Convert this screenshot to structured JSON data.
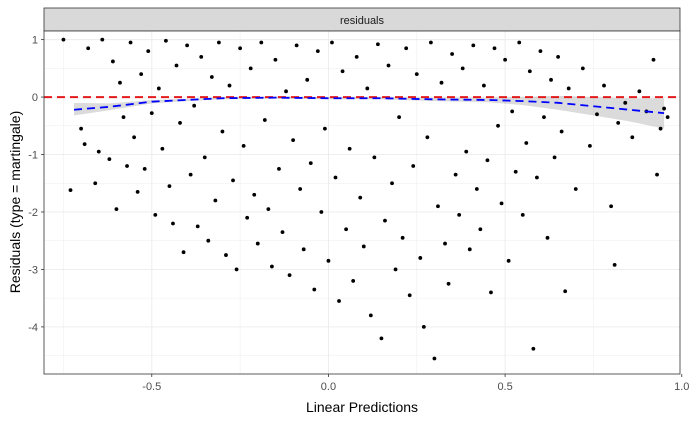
{
  "chart_data": {
    "type": "scatter",
    "facet_label": "residuals",
    "xlabel": "Linear Predictions",
    "ylabel": "Residuals (type = martingale)",
    "xlim": [
      -0.805,
      0.995
    ],
    "ylim": [
      -4.82,
      1.15
    ],
    "x_ticks": [
      {
        "value": -0.5,
        "label": "-0.5"
      },
      {
        "value": 0,
        "label": "0.0"
      },
      {
        "value": 0.5,
        "label": "0.5"
      },
      {
        "value": 1.0,
        "label": "1.0"
      }
    ],
    "y_ticks": [
      {
        "value": 1,
        "label": "1"
      },
      {
        "value": 0,
        "label": "0"
      },
      {
        "value": -1,
        "label": "-1"
      },
      {
        "value": -2,
        "label": "-2"
      },
      {
        "value": -3,
        "label": "-3"
      },
      {
        "value": -4,
        "label": "-4"
      }
    ],
    "reference_line": {
      "y": 0,
      "style": "dashed",
      "color": "#e31a1c"
    },
    "smooth": {
      "color": "#0000ff",
      "style": "dashed",
      "points": [
        {
          "x": -0.72,
          "y": -0.22,
          "lo": -0.32,
          "hi": -0.1
        },
        {
          "x": -0.62,
          "y": -0.17,
          "lo": -0.23,
          "hi": -0.11
        },
        {
          "x": -0.5,
          "y": -0.08,
          "lo": -0.11,
          "hi": -0.05
        },
        {
          "x": -0.4,
          "y": -0.05,
          "lo": -0.07,
          "hi": -0.03
        },
        {
          "x": -0.3,
          "y": -0.02,
          "lo": -0.04,
          "hi": 0.0
        },
        {
          "x": -0.15,
          "y": -0.01,
          "lo": -0.03,
          "hi": 0.01
        },
        {
          "x": 0.0,
          "y": -0.02,
          "lo": -0.04,
          "hi": 0.0
        },
        {
          "x": 0.15,
          "y": -0.02,
          "lo": -0.04,
          "hi": 0.0
        },
        {
          "x": 0.3,
          "y": -0.04,
          "lo": -0.07,
          "hi": -0.01
        },
        {
          "x": 0.45,
          "y": -0.05,
          "lo": -0.09,
          "hi": -0.01
        },
        {
          "x": 0.55,
          "y": -0.07,
          "lo": -0.14,
          "hi": 0.0
        },
        {
          "x": 0.65,
          "y": -0.1,
          "lo": -0.22,
          "hi": 0.02
        },
        {
          "x": 0.75,
          "y": -0.16,
          "lo": -0.32,
          "hi": 0.0
        },
        {
          "x": 0.85,
          "y": -0.22,
          "lo": -0.42,
          "hi": -0.02
        },
        {
          "x": 0.95,
          "y": -0.28,
          "lo": -0.55,
          "hi": -0.02
        }
      ]
    },
    "points": [
      [
        -0.75,
        1.0
      ],
      [
        -0.73,
        -1.62
      ],
      [
        -0.7,
        -0.55
      ],
      [
        -0.69,
        -0.82
      ],
      [
        -0.68,
        0.85
      ],
      [
        -0.66,
        -1.5
      ],
      [
        -0.65,
        -0.95
      ],
      [
        -0.64,
        1.0
      ],
      [
        -0.62,
        -1.08
      ],
      [
        -0.61,
        0.62
      ],
      [
        -0.6,
        -1.95
      ],
      [
        -0.59,
        0.25
      ],
      [
        -0.58,
        -0.35
      ],
      [
        -0.57,
        -1.2
      ],
      [
        -0.56,
        0.95
      ],
      [
        -0.55,
        -0.7
      ],
      [
        -0.54,
        -1.65
      ],
      [
        -0.53,
        0.4
      ],
      [
        -0.52,
        -1.25
      ],
      [
        -0.51,
        0.8
      ],
      [
        -0.5,
        -0.28
      ],
      [
        -0.49,
        -2.05
      ],
      [
        -0.48,
        0.15
      ],
      [
        -0.47,
        -0.9
      ],
      [
        -0.46,
        0.98
      ],
      [
        -0.45,
        -1.55
      ],
      [
        -0.44,
        -2.2
      ],
      [
        -0.43,
        0.55
      ],
      [
        -0.42,
        -0.45
      ],
      [
        -0.41,
        -2.7
      ],
      [
        -0.4,
        0.9
      ],
      [
        -0.39,
        -1.35
      ],
      [
        -0.38,
        -0.15
      ],
      [
        -0.37,
        -2.25
      ],
      [
        -0.36,
        0.7
      ],
      [
        -0.35,
        -1.05
      ],
      [
        -0.34,
        -2.5
      ],
      [
        -0.33,
        0.35
      ],
      [
        -0.32,
        -1.8
      ],
      [
        -0.31,
        0.95
      ],
      [
        -0.3,
        -0.6
      ],
      [
        -0.29,
        -2.75
      ],
      [
        -0.28,
        0.2
      ],
      [
        -0.27,
        -1.45
      ],
      [
        -0.26,
        -3.0
      ],
      [
        -0.25,
        0.85
      ],
      [
        -0.24,
        -0.85
      ],
      [
        -0.23,
        -2.1
      ],
      [
        -0.22,
        0.5
      ],
      [
        -0.21,
        -1.7
      ],
      [
        -0.2,
        -2.55
      ],
      [
        -0.19,
        0.95
      ],
      [
        -0.18,
        -0.4
      ],
      [
        -0.17,
        -1.95
      ],
      [
        -0.16,
        -2.95
      ],
      [
        -0.15,
        0.65
      ],
      [
        -0.14,
        -1.25
      ],
      [
        -0.13,
        -2.35
      ],
      [
        -0.12,
        0.1
      ],
      [
        -0.11,
        -3.1
      ],
      [
        -0.1,
        -0.75
      ],
      [
        -0.09,
        0.9
      ],
      [
        -0.08,
        -1.6
      ],
      [
        -0.07,
        -2.65
      ],
      [
        -0.06,
        0.3
      ],
      [
        -0.05,
        -1.15
      ],
      [
        -0.04,
        -3.35
      ],
      [
        -0.03,
        0.8
      ],
      [
        -0.02,
        -2.0
      ],
      [
        -0.01,
        -0.55
      ],
      [
        0.0,
        -2.85
      ],
      [
        0.01,
        0.95
      ],
      [
        0.02,
        -1.4
      ],
      [
        0.03,
        -3.55
      ],
      [
        0.04,
        0.45
      ],
      [
        0.05,
        -2.3
      ],
      [
        0.06,
        -0.9
      ],
      [
        0.07,
        -3.2
      ],
      [
        0.08,
        0.7
      ],
      [
        0.09,
        -1.75
      ],
      [
        0.1,
        -2.6
      ],
      [
        0.11,
        0.15
      ],
      [
        0.12,
        -3.8
      ],
      [
        0.13,
        -1.05
      ],
      [
        0.14,
        0.92
      ],
      [
        0.15,
        -4.2
      ],
      [
        0.16,
        -2.15
      ],
      [
        0.17,
        0.55
      ],
      [
        0.18,
        -1.5
      ],
      [
        0.19,
        -3.0
      ],
      [
        0.2,
        -0.35
      ],
      [
        0.21,
        -2.45
      ],
      [
        0.22,
        0.85
      ],
      [
        0.23,
        -3.45
      ],
      [
        0.24,
        -1.2
      ],
      [
        0.25,
        0.4
      ],
      [
        0.26,
        -2.8
      ],
      [
        0.27,
        -4.0
      ],
      [
        0.28,
        -0.7
      ],
      [
        0.29,
        0.95
      ],
      [
        0.3,
        -4.55
      ],
      [
        0.31,
        -1.9
      ],
      [
        0.32,
        0.25
      ],
      [
        0.33,
        -2.55
      ],
      [
        0.34,
        -3.25
      ],
      [
        0.35,
        0.75
      ],
      [
        0.36,
        -1.35
      ],
      [
        0.37,
        -2.05
      ],
      [
        0.38,
        0.5
      ],
      [
        0.39,
        -0.95
      ],
      [
        0.4,
        -2.65
      ],
      [
        0.41,
        0.9
      ],
      [
        0.42,
        -1.6
      ],
      [
        0.43,
        -2.3
      ],
      [
        0.44,
        0.2
      ],
      [
        0.45,
        -1.1
      ],
      [
        0.46,
        -3.4
      ],
      [
        0.47,
        0.85
      ],
      [
        0.48,
        -0.5
      ],
      [
        0.49,
        -1.85
      ],
      [
        0.5,
        0.65
      ],
      [
        0.51,
        -2.85
      ],
      [
        0.52,
        -0.25
      ],
      [
        0.53,
        -1.3
      ],
      [
        0.54,
        0.95
      ],
      [
        0.55,
        -2.05
      ],
      [
        0.56,
        -0.8
      ],
      [
        0.57,
        0.45
      ],
      [
        0.58,
        -4.38
      ],
      [
        0.59,
        -1.4
      ],
      [
        0.6,
        0.8
      ],
      [
        0.61,
        -0.35
      ],
      [
        0.62,
        -2.45
      ],
      [
        0.63,
        0.3
      ],
      [
        0.64,
        -1.05
      ],
      [
        0.65,
        0.7
      ],
      [
        0.66,
        -0.6
      ],
      [
        0.67,
        -3.38
      ],
      [
        0.68,
        0.15
      ],
      [
        0.7,
        -1.6
      ],
      [
        0.72,
        0.5
      ],
      [
        0.74,
        -0.85
      ],
      [
        0.76,
        -0.3
      ],
      [
        0.78,
        0.2
      ],
      [
        0.8,
        -1.9
      ],
      [
        0.81,
        -2.92
      ],
      [
        0.82,
        -0.45
      ],
      [
        0.84,
        -0.1
      ],
      [
        0.86,
        -0.7
      ],
      [
        0.88,
        0.1
      ],
      [
        0.9,
        -0.25
      ],
      [
        0.92,
        0.65
      ],
      [
        0.93,
        -1.35
      ],
      [
        0.94,
        -0.55
      ],
      [
        0.95,
        -0.2
      ],
      [
        0.96,
        -0.35
      ]
    ]
  }
}
